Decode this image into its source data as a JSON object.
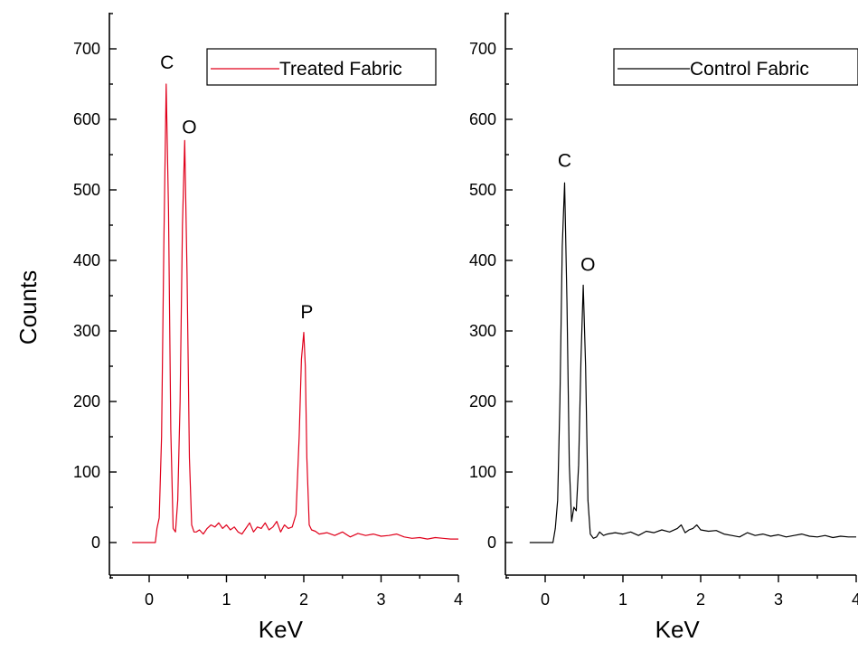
{
  "chart_data": [
    {
      "type": "line",
      "panel": "left",
      "title": "",
      "xlabel": "KeV",
      "ylabel": "Counts",
      "xlim": [
        -0.55,
        4.0
      ],
      "ylim": [
        -50,
        750
      ],
      "x_ticks": [
        "0",
        "1",
        "2",
        "3",
        "4"
      ],
      "y_ticks": [
        "0",
        "100",
        "200",
        "300",
        "400",
        "500",
        "600",
        "700"
      ],
      "grid": false,
      "legend_position": "top-right",
      "series": [
        {
          "name": "Treated Fabric",
          "color": "#e0001b",
          "x": [
            -0.22,
            0.08,
            0.1,
            0.13,
            0.16,
            0.19,
            0.22,
            0.25,
            0.28,
            0.31,
            0.34,
            0.37,
            0.4,
            0.43,
            0.46,
            0.49,
            0.52,
            0.55,
            0.58,
            0.61,
            0.65,
            0.7,
            0.75,
            0.8,
            0.85,
            0.9,
            0.95,
            1.0,
            1.05,
            1.1,
            1.15,
            1.2,
            1.25,
            1.3,
            1.35,
            1.4,
            1.45,
            1.5,
            1.55,
            1.6,
            1.65,
            1.7,
            1.75,
            1.8,
            1.85,
            1.9,
            1.94,
            1.97,
            2.0,
            2.02,
            2.04,
            2.07,
            2.1,
            2.15,
            2.2,
            2.3,
            2.4,
            2.5,
            2.6,
            2.7,
            2.8,
            2.9,
            3.0,
            3.1,
            3.2,
            3.3,
            3.4,
            3.5,
            3.6,
            3.7,
            3.8,
            3.9,
            4.0
          ],
          "y": [
            0,
            0,
            20,
            35,
            150,
            420,
            650,
            470,
            160,
            20,
            15,
            60,
            200,
            450,
            570,
            380,
            120,
            25,
            15,
            15,
            18,
            12,
            20,
            25,
            22,
            28,
            20,
            25,
            18,
            22,
            15,
            12,
            20,
            28,
            15,
            22,
            20,
            28,
            18,
            22,
            30,
            15,
            25,
            20,
            22,
            40,
            150,
            260,
            298,
            250,
            120,
            25,
            18,
            16,
            12,
            14,
            10,
            15,
            8,
            13,
            10,
            12,
            9,
            10,
            12,
            8,
            6,
            7,
            5,
            7,
            6,
            5,
            5
          ]
        }
      ],
      "annotations": [
        {
          "text": "C",
          "x": 0.23,
          "y": 672
        },
        {
          "text": "O",
          "x": 0.52,
          "y": 580
        },
        {
          "text": "P",
          "x": 2.04,
          "y": 318
        }
      ]
    },
    {
      "type": "line",
      "panel": "right",
      "title": "",
      "xlabel": "KeV",
      "ylabel": "",
      "xlim": [
        -0.55,
        4.0
      ],
      "ylim": [
        -50,
        750
      ],
      "x_ticks": [
        "0",
        "1",
        "2",
        "3",
        "4"
      ],
      "y_ticks": [
        "0",
        "100",
        "200",
        "300",
        "400",
        "500",
        "600",
        "700"
      ],
      "grid": false,
      "legend_position": "top-right",
      "series": [
        {
          "name": "Control Fabric",
          "color": "#000000",
          "x": [
            -0.2,
            0.1,
            0.13,
            0.16,
            0.19,
            0.22,
            0.25,
            0.28,
            0.31,
            0.34,
            0.37,
            0.4,
            0.43,
            0.46,
            0.49,
            0.52,
            0.55,
            0.58,
            0.62,
            0.66,
            0.7,
            0.75,
            0.8,
            0.9,
            1.0,
            1.1,
            1.2,
            1.3,
            1.4,
            1.5,
            1.6,
            1.7,
            1.75,
            1.8,
            1.85,
            1.9,
            1.95,
            2.0,
            2.1,
            2.2,
            2.3,
            2.4,
            2.5,
            2.6,
            2.7,
            2.8,
            2.9,
            3.0,
            3.1,
            3.2,
            3.3,
            3.4,
            3.5,
            3.6,
            3.7,
            3.8,
            3.9,
            4.0
          ],
          "y": [
            0,
            0,
            20,
            60,
            200,
            420,
            510,
            340,
            110,
            30,
            50,
            45,
            110,
            260,
            365,
            250,
            60,
            12,
            6,
            8,
            15,
            10,
            12,
            14,
            12,
            15,
            10,
            16,
            14,
            18,
            15,
            20,
            25,
            14,
            18,
            20,
            25,
            18,
            16,
            17,
            12,
            10,
            8,
            14,
            10,
            12,
            9,
            11,
            8,
            10,
            12,
            9,
            8,
            10,
            7,
            9,
            8,
            8
          ]
        }
      ],
      "annotations": [
        {
          "text": "C",
          "x": 0.25,
          "y": 533
        },
        {
          "text": "O",
          "x": 0.55,
          "y": 385
        }
      ]
    }
  ]
}
